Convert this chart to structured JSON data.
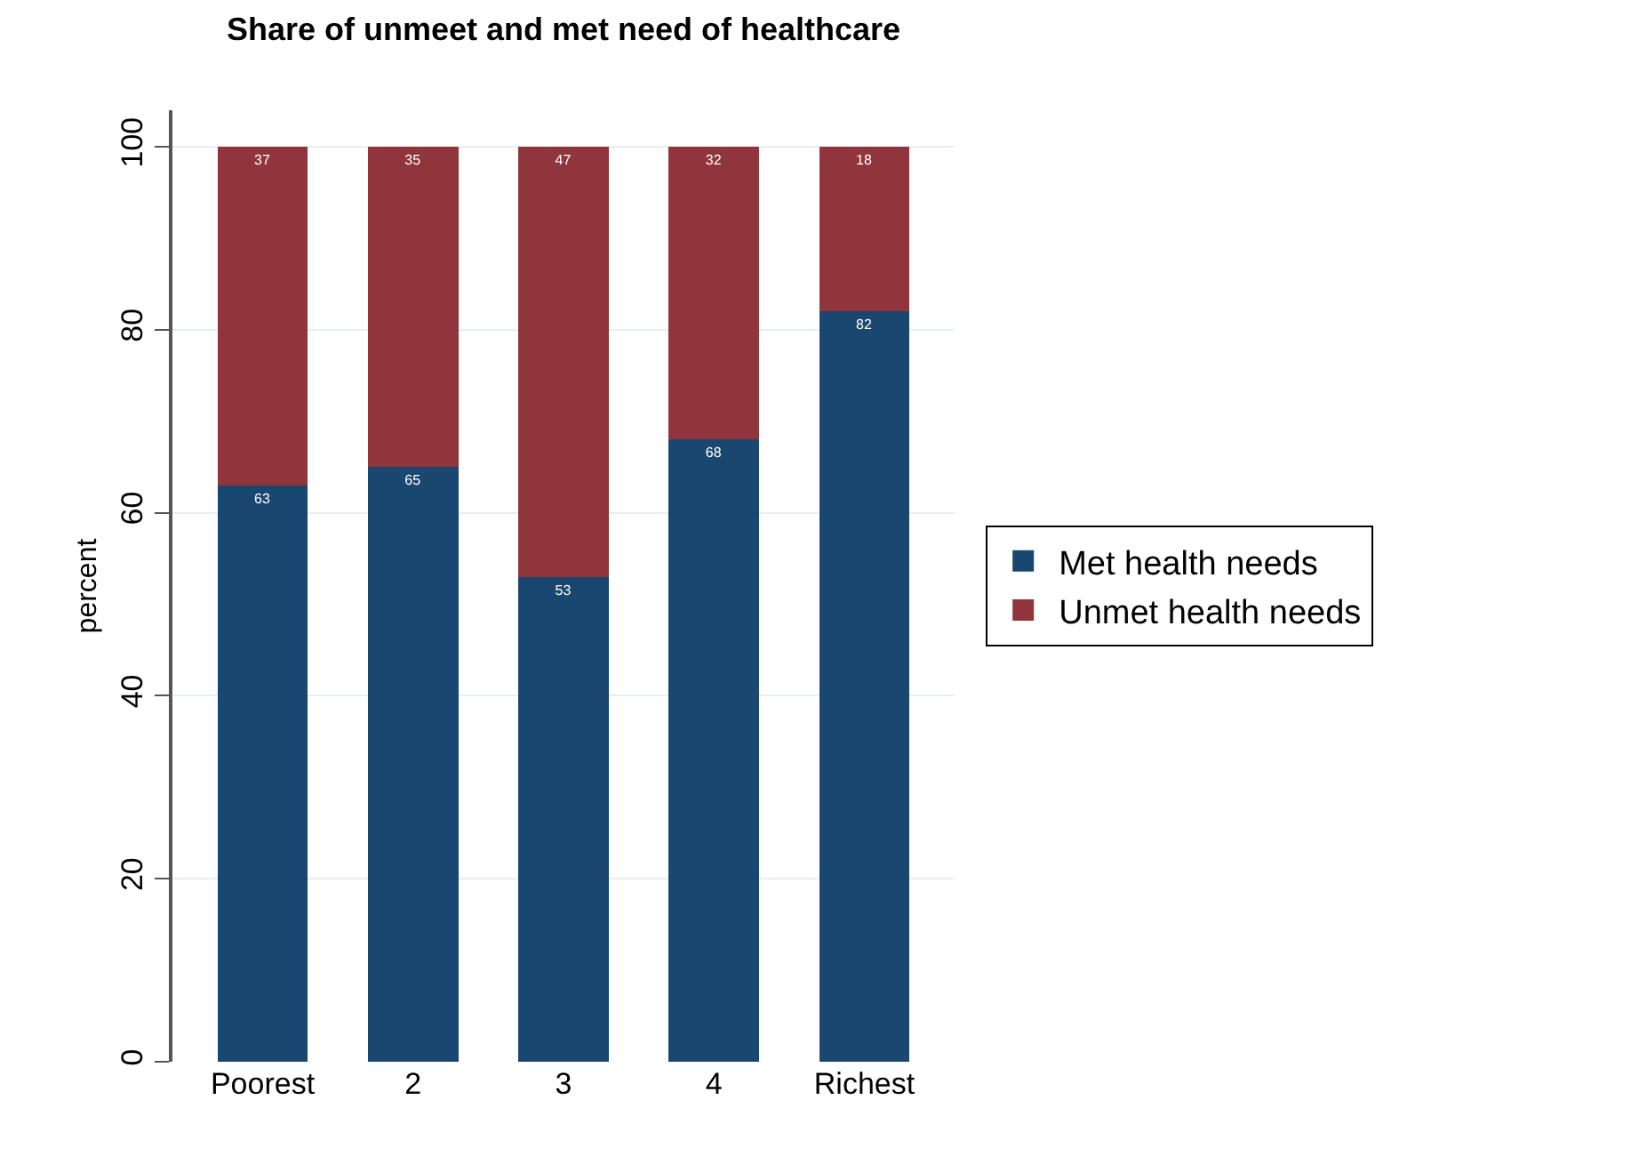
{
  "chart_data": {
    "type": "bar",
    "title": "Share of unmeet and met need of healthcare",
    "ylabel": "percent",
    "categories": [
      "Poorest",
      "2",
      "3",
      "4",
      "Richest"
    ],
    "series": [
      {
        "name": "Met health needs",
        "color": "#1a476f",
        "values": [
          63,
          65,
          53,
          68,
          82
        ]
      },
      {
        "name": "Unmet health needs",
        "color": "#90353b",
        "values": [
          37,
          35,
          47,
          32,
          18
        ]
      }
    ],
    "stacked": true,
    "data_labels": true,
    "ylim": [
      0,
      104
    ],
    "yticks": [
      0,
      20,
      40,
      60,
      80,
      100
    ],
    "grid": "y",
    "legend": "right"
  }
}
